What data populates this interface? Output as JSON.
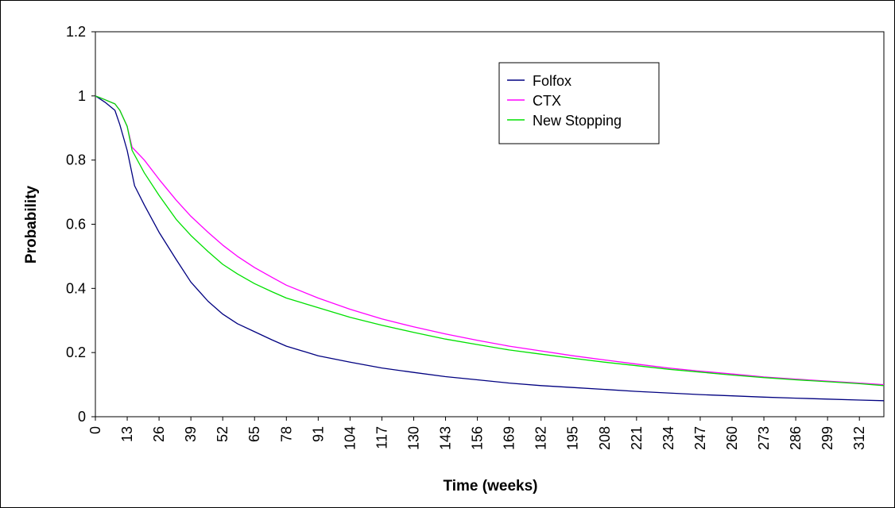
{
  "chart_data": {
    "type": "line",
    "title": "",
    "xlabel": "Time (weeks)",
    "ylabel": "Probability",
    "xlim": [
      0,
      322
    ],
    "ylim": [
      0,
      1.2
    ],
    "yticks": [
      "0",
      "0.2",
      "0.4",
      "0.6",
      "0.8",
      "1",
      "1.2"
    ],
    "xticks": [
      "0",
      "13",
      "26",
      "39",
      "52",
      "65",
      "78",
      "91",
      "104",
      "117",
      "130",
      "143",
      "156",
      "169",
      "182",
      "195",
      "208",
      "221",
      "234",
      "247",
      "260",
      "273",
      "286",
      "299",
      "312"
    ],
    "grid": false,
    "legend_position": "top-right",
    "series": [
      {
        "name": "Folfox",
        "color": "#000080",
        "x": [
          0,
          4,
          8,
          10,
          13,
          16,
          20,
          26,
          33,
          39,
          46,
          52,
          58,
          65,
          72,
          78,
          91,
          104,
          117,
          130,
          143,
          156,
          169,
          182,
          195,
          208,
          221,
          234,
          247,
          260,
          273,
          286,
          299,
          312,
          322
        ],
        "y": [
          1.0,
          0.98,
          0.955,
          0.91,
          0.83,
          0.72,
          0.66,
          0.575,
          0.49,
          0.42,
          0.36,
          0.32,
          0.29,
          0.265,
          0.24,
          0.22,
          0.19,
          0.17,
          0.152,
          0.138,
          0.125,
          0.115,
          0.105,
          0.097,
          0.091,
          0.085,
          0.079,
          0.074,
          0.069,
          0.065,
          0.061,
          0.058,
          0.055,
          0.052,
          0.05
        ]
      },
      {
        "name": "CTX",
        "color": "#FF00FF",
        "x": [
          0,
          4,
          8,
          10,
          13,
          15,
          20,
          26,
          33,
          39,
          46,
          52,
          58,
          65,
          72,
          78,
          91,
          104,
          117,
          130,
          143,
          156,
          169,
          182,
          195,
          208,
          221,
          234,
          247,
          260,
          273,
          286,
          299,
          312,
          322
        ],
        "y": [
          1.0,
          0.988,
          0.975,
          0.955,
          0.905,
          0.84,
          0.8,
          0.74,
          0.675,
          0.625,
          0.575,
          0.535,
          0.5,
          0.465,
          0.435,
          0.41,
          0.37,
          0.335,
          0.305,
          0.28,
          0.258,
          0.238,
          0.22,
          0.205,
          0.19,
          0.177,
          0.164,
          0.152,
          0.142,
          0.133,
          0.124,
          0.117,
          0.111,
          0.105,
          0.1
        ]
      },
      {
        "name": "New Stopping",
        "color": "#00E000",
        "x": [
          0,
          4,
          8,
          10,
          13,
          15,
          20,
          26,
          33,
          39,
          46,
          52,
          58,
          65,
          72,
          78,
          91,
          104,
          117,
          130,
          143,
          156,
          169,
          182,
          195,
          208,
          221,
          234,
          247,
          260,
          273,
          286,
          299,
          312,
          322
        ],
        "y": [
          1.0,
          0.988,
          0.975,
          0.955,
          0.905,
          0.83,
          0.76,
          0.69,
          0.615,
          0.565,
          0.515,
          0.475,
          0.445,
          0.415,
          0.39,
          0.37,
          0.34,
          0.31,
          0.285,
          0.263,
          0.242,
          0.225,
          0.208,
          0.195,
          0.182,
          0.17,
          0.159,
          0.148,
          0.139,
          0.13,
          0.122,
          0.115,
          0.109,
          0.103,
          0.097
        ]
      }
    ]
  }
}
